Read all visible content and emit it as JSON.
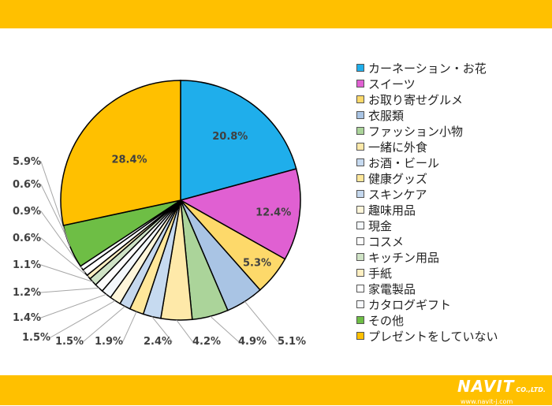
{
  "theme": {
    "band_color": "#FFC000",
    "slice_border": "#000000",
    "label_color": "#404040",
    "leader_color": "#A6A6A6"
  },
  "chart_data": {
    "type": "pie",
    "title": "",
    "slices": [
      {
        "name": "カーネーション・お花",
        "value": 20.8,
        "label": "20.8%",
        "color": "#1FAEEB"
      },
      {
        "name": "スイーツ",
        "value": 12.4,
        "label": "12.4%",
        "color": "#E060D2"
      },
      {
        "name": "お取り寄せグルメ",
        "value": 5.3,
        "label": "5.3%",
        "color": "#FDD96A"
      },
      {
        "name": "衣服類",
        "value": 5.1,
        "label": "5.1%",
        "color": "#A9C4E4"
      },
      {
        "name": "ファッション小物",
        "value": 4.9,
        "label": "4.9%",
        "color": "#ABD49A"
      },
      {
        "name": "一緒に外食",
        "value": 4.2,
        "label": "4.2%",
        "color": "#FEE9A9"
      },
      {
        "name": "お酒・ビール",
        "value": 2.4,
        "label": "2.4%",
        "color": "#C6DAF0"
      },
      {
        "name": "健康グッズ",
        "value": 1.9,
        "label": "1.9%",
        "color": "#FFE79A"
      },
      {
        "name": "スキンケア",
        "value": 1.5,
        "label": "1.5%",
        "color": "#C5D8EE"
      },
      {
        "name": "趣味用品",
        "value": 1.5,
        "label": "1.5%",
        "color": "#FFF6DA"
      },
      {
        "name": "現金",
        "value": 1.4,
        "label": "1.4%",
        "color": "#F4F8FC"
      },
      {
        "name": "コスメ",
        "value": 1.2,
        "label": "1.2%",
        "color": "#FCFCFC"
      },
      {
        "name": "キッチン用品",
        "value": 1.1,
        "label": "1.1%",
        "color": "#CFE3C6"
      },
      {
        "name": "手紙",
        "value": 0.6,
        "label": "0.6%",
        "color": "#FFEFC2"
      },
      {
        "name": "家電製品",
        "value": 0.9,
        "label": "0.9%",
        "color": "#FFFFFF"
      },
      {
        "name": "カタログギフト",
        "value": 0.6,
        "label": "0.6%",
        "color": "#F7F9FC"
      },
      {
        "name": "その他",
        "value": 5.9,
        "label": "5.9%",
        "color": "#6EBE45"
      },
      {
        "name": "プレゼントをしていない",
        "value": 28.4,
        "label": "28.4%",
        "color": "#FFC000"
      }
    ],
    "legend_position": "right"
  },
  "logo": {
    "name": "NAVIT",
    "suffix": "CO.,LTD.",
    "url": "www.navit-j.com"
  }
}
